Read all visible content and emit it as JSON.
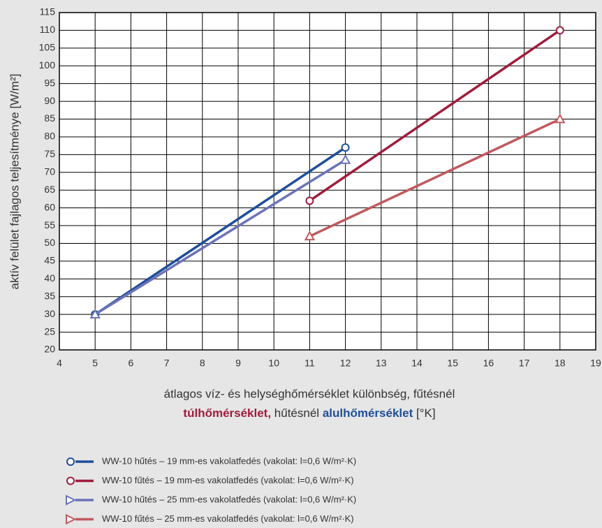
{
  "chart_data": {
    "type": "line",
    "ylabel": "aktív felület fajlagos teljesítménye [W/m²]",
    "xlabel_line1": "átlagos víz- és helységhőmérséklet különbség, fűtésnél",
    "xlabel_line2": [
      "túlhőmérséklet,",
      " hűtésnél ",
      "alulhőmérséklet",
      " [°K]"
    ],
    "xlim": [
      4,
      19
    ],
    "xticks": [
      4,
      5,
      6,
      7,
      8,
      9,
      10,
      11,
      12,
      13,
      14,
      15,
      16,
      17,
      18,
      19
    ],
    "ylim": [
      20,
      115
    ],
    "yticks": [
      20,
      25,
      30,
      35,
      40,
      45,
      50,
      55,
      60,
      65,
      70,
      75,
      80,
      85,
      90,
      95,
      100,
      105,
      110,
      115
    ],
    "grid": true,
    "series": [
      {
        "name": "WW-10 hűtés – 19 mm-es vakolatfedés (vakolat: l=0,6 W/m²·K)",
        "color": "#1f4e9a",
        "marker": "circle",
        "x": [
          5,
          12
        ],
        "values": [
          30,
          77
        ]
      },
      {
        "name": "WW-10 fűtés – 19 mm-es vakolatfedés (vakolat: l=0,6 W/m²·K)",
        "color": "#a01c3c",
        "marker": "circle",
        "x": [
          11,
          18
        ],
        "values": [
          62,
          110
        ]
      },
      {
        "name": "WW-10 hűtés – 25 mm-es vakolatfedés (vakolat: l=0,6 W/m²·K)",
        "color": "#6b74b8",
        "marker": "triangle",
        "x": [
          5,
          12
        ],
        "values": [
          30,
          73.5
        ]
      },
      {
        "name": "WW-10 fűtés – 25 mm-es vakolatfedés (vakolat: l=0,6 W/m²·K)",
        "color": "#c0595e",
        "marker": "triangle",
        "x": [
          11,
          18
        ],
        "values": [
          52,
          85
        ]
      }
    ]
  }
}
